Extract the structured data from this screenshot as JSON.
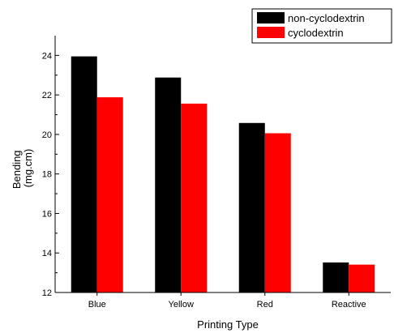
{
  "chart_data": {
    "type": "bar",
    "categories": [
      "Blue",
      "Yellow",
      "Red",
      "Reactive"
    ],
    "series": [
      {
        "name": "non-cyclodextrin",
        "color": "#000000",
        "values": [
          23.95,
          22.88,
          20.58,
          13.52
        ]
      },
      {
        "name": "cyclodextrin",
        "color": "#ff0000",
        "values": [
          21.88,
          21.56,
          20.06,
          13.41
        ]
      }
    ],
    "xlabel": "Printing Type",
    "ylabel_lines": [
      "Bending",
      "(mg.cm)"
    ],
    "ylim": [
      12,
      25
    ],
    "yticks": [
      12,
      14,
      16,
      18,
      20,
      22,
      24
    ],
    "legend_position": "top-right",
    "grid": false
  }
}
